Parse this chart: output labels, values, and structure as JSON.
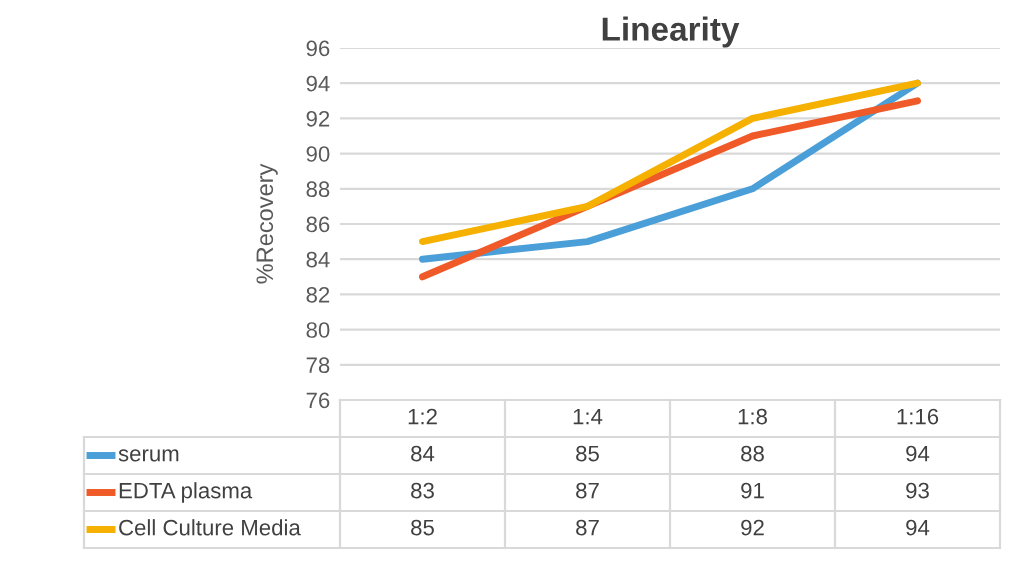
{
  "chart_data": {
    "type": "line",
    "title": "Linearity",
    "ylabel": "%Recovery",
    "categories": [
      "1:2",
      "1:4",
      "1:8",
      "1:16"
    ],
    "series": [
      {
        "name": "serum",
        "color": "#4a9fd8",
        "values": [
          84,
          85,
          88,
          94
        ]
      },
      {
        "name": "EDTA plasma",
        "color": "#ef5a28",
        "values": [
          83,
          87,
          91,
          93
        ]
      },
      {
        "name": "Cell Culture Media",
        "color": "#f5b000",
        "values": [
          85,
          87,
          92,
          94
        ]
      }
    ],
    "ylim": [
      76,
      96
    ],
    "yticks": [
      76,
      78,
      80,
      82,
      84,
      86,
      88,
      90,
      92,
      94,
      96
    ],
    "grid": "y",
    "legend": "bottom",
    "data_labels": true,
    "marker": "none",
    "line_style": "solid"
  }
}
